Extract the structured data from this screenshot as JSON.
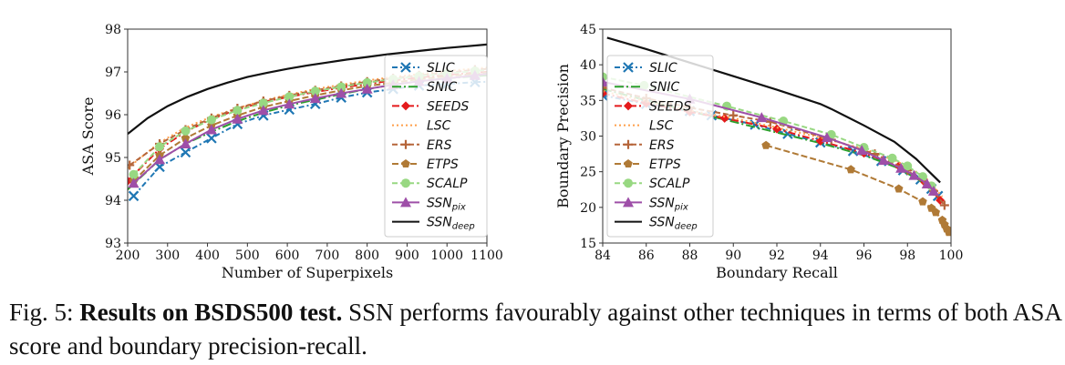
{
  "caption": {
    "label": "Fig. 5:",
    "bold": "Results on BSDS500 test.",
    "text": "SSN performs favourably against other techniques in terms of both ASA score and boundary precision-recall."
  },
  "chart_data": [
    {
      "type": "line",
      "title": "",
      "xlabel": "Number of Superpixels",
      "ylabel": "ASA Score",
      "xlim": [
        200,
        1100
      ],
      "ylim": [
        93,
        98
      ],
      "xticks": [
        200,
        300,
        400,
        500,
        600,
        700,
        800,
        900,
        1000,
        1100
      ],
      "yticks": [
        93,
        94,
        95,
        96,
        97,
        98
      ],
      "grid": false,
      "legend_position": "lower-right",
      "series": [
        {
          "name": "SLIC",
          "sub": "",
          "color": "#1f77b4",
          "dash": "6,3,2,3",
          "marker": "x",
          "x": [
            215,
            280,
            345,
            410,
            475,
            540,
            605,
            670,
            735,
            800,
            865,
            930,
            1000,
            1070,
            1100
          ],
          "y": [
            94.1,
            94.78,
            95.12,
            95.45,
            95.78,
            95.98,
            96.12,
            96.25,
            96.4,
            96.52,
            96.6,
            96.68,
            96.72,
            96.76,
            96.77
          ]
        },
        {
          "name": "SNIC",
          "sub": "",
          "color": "#2ca02c",
          "dash": "10,3,2,3",
          "marker": "none",
          "x": [
            200,
            280,
            345,
            410,
            475,
            540,
            605,
            670,
            735,
            800,
            865,
            930,
            1000,
            1070,
            1100
          ],
          "y": [
            94.25,
            94.95,
            95.32,
            95.6,
            95.85,
            96.05,
            96.22,
            96.35,
            96.48,
            96.6,
            96.7,
            96.78,
            96.85,
            96.9,
            96.92
          ]
        },
        {
          "name": "SEEDS",
          "sub": "",
          "color": "#e41a1c",
          "dash": "8,3,2,3",
          "marker": "diamond",
          "x": [
            200,
            280,
            345,
            410,
            475,
            540,
            605,
            670,
            735,
            800,
            865,
            930,
            1000,
            1070,
            1100
          ],
          "y": [
            94.45,
            95.2,
            95.6,
            95.9,
            96.12,
            96.3,
            96.42,
            96.53,
            96.63,
            96.72,
            96.8,
            96.87,
            96.93,
            96.98,
            97.0
          ]
        },
        {
          "name": "LSC",
          "sub": "",
          "color": "#ff9f4a",
          "dash": "2,3",
          "marker": "none",
          "x": [
            200,
            280,
            345,
            410,
            475,
            540,
            605,
            670,
            735,
            800,
            865,
            930,
            1000,
            1070,
            1100
          ],
          "y": [
            94.75,
            95.35,
            95.7,
            95.95,
            96.15,
            96.33,
            96.47,
            96.6,
            96.7,
            96.8,
            96.88,
            96.95,
            97.02,
            97.08,
            97.1
          ]
        },
        {
          "name": "ERS",
          "sub": "",
          "color": "#b5653a",
          "dash": "6,3",
          "marker": "plus",
          "x": [
            205,
            280,
            345,
            410,
            475,
            540,
            605,
            670,
            735,
            800,
            865,
            930,
            1000,
            1070,
            1100
          ],
          "y": [
            94.82,
            95.32,
            95.65,
            95.92,
            96.15,
            96.32,
            96.45,
            96.57,
            96.67,
            96.77,
            96.85,
            96.92,
            96.98,
            97.05,
            97.07
          ]
        },
        {
          "name": "ETPS",
          "sub": "",
          "color": "#b07a36",
          "dash": "7,3",
          "marker": "pentagon",
          "x": [
            215,
            280,
            345,
            410,
            475,
            540,
            605,
            670,
            735,
            800,
            865,
            930,
            1000,
            1070,
            1100
          ],
          "y": [
            94.45,
            95.05,
            95.45,
            95.75,
            95.98,
            96.18,
            96.32,
            96.45,
            96.57,
            96.67,
            96.75,
            96.83,
            96.9,
            96.96,
            96.98
          ]
        },
        {
          "name": "SCALP",
          "sub": "",
          "color": "#98d882",
          "dash": "6,3",
          "marker": "circle",
          "x": [
            215,
            280,
            345,
            410,
            475,
            540,
            605,
            670,
            735,
            800,
            865,
            930,
            1000,
            1070,
            1100
          ],
          "y": [
            94.6,
            95.25,
            95.62,
            95.88,
            96.1,
            96.27,
            96.42,
            96.55,
            96.65,
            96.75,
            96.83,
            96.9,
            96.96,
            97.02,
            97.04
          ]
        },
        {
          "name": "SSN",
          "sub": "pix",
          "color": "#9e4fa8",
          "dash": "",
          "marker": "triangle",
          "x": [
            215,
            280,
            345,
            410,
            475,
            540,
            605,
            670,
            735,
            800,
            865,
            930,
            1000,
            1070,
            1100
          ],
          "y": [
            94.4,
            94.95,
            95.32,
            95.65,
            95.9,
            96.1,
            96.25,
            96.38,
            96.5,
            96.6,
            96.7,
            96.78,
            96.85,
            96.92,
            96.95
          ]
        },
        {
          "name": "SSN",
          "sub": "deep",
          "color": "#111111",
          "dash": "",
          "marker": "none",
          "x": [
            200,
            250,
            300,
            350,
            400,
            450,
            500,
            550,
            600,
            650,
            700,
            750,
            800,
            850,
            900,
            950,
            1000,
            1050,
            1100
          ],
          "y": [
            95.55,
            95.92,
            96.2,
            96.42,
            96.6,
            96.75,
            96.88,
            96.98,
            97.07,
            97.15,
            97.22,
            97.29,
            97.35,
            97.41,
            97.46,
            97.51,
            97.56,
            97.6,
            97.64
          ]
        }
      ]
    },
    {
      "type": "line",
      "title": "",
      "xlabel": "Boundary Recall",
      "ylabel": "Boundary Precision",
      "xlim": [
        84,
        100
      ],
      "ylim": [
        15,
        45
      ],
      "xticks": [
        84,
        86,
        88,
        90,
        92,
        94,
        96,
        98,
        100
      ],
      "yticks": [
        15,
        20,
        25,
        30,
        35,
        40,
        45
      ],
      "grid": false,
      "legend_position": "lower-left",
      "series": [
        {
          "name": "SLIC",
          "sub": "",
          "color": "#1f77b4",
          "dash": "6,3,2,3",
          "marker": "x",
          "x": [
            84,
            86,
            88,
            89.0,
            91.0,
            92.5,
            94.0,
            95.5,
            96.8,
            97.8,
            98.6,
            99.1,
            99.4
          ],
          "y": [
            35.7,
            34.5,
            33.5,
            32.9,
            31.6,
            30.3,
            29.1,
            27.9,
            26.5,
            25.2,
            23.9,
            22.6,
            21.6
          ]
        },
        {
          "name": "SNIC",
          "sub": "",
          "color": "#2ca02c",
          "dash": "10,3,2,3",
          "marker": "none",
          "x": [
            84,
            86,
            88,
            90,
            92,
            94,
            96,
            97.5,
            98.5,
            99.2
          ],
          "y": [
            36.6,
            35.0,
            33.5,
            32.0,
            30.5,
            29.0,
            27.3,
            25.6,
            23.9,
            22.3
          ]
        },
        {
          "name": "SEEDS",
          "sub": "",
          "color": "#e41a1c",
          "dash": "8,3,2,3",
          "marker": "diamond",
          "x": [
            84,
            86,
            88,
            89.6,
            92,
            94.0,
            96,
            97.6,
            98.8,
            99.5
          ],
          "y": [
            36.0,
            34.6,
            33.4,
            32.5,
            31.0,
            29.3,
            27.6,
            25.8,
            23.5,
            21.0
          ]
        },
        {
          "name": "LSC",
          "sub": "",
          "color": "#ff9f4a",
          "dash": "2,3",
          "marker": "none",
          "x": [
            84,
            86,
            88,
            90,
            92,
            94,
            96,
            97.5,
            98.8,
            99.6
          ],
          "y": [
            36.3,
            34.9,
            33.6,
            32.5,
            31.2,
            29.8,
            28.2,
            26.5,
            24.3,
            21.5
          ]
        },
        {
          "name": "ERS",
          "sub": "",
          "color": "#b5653a",
          "dash": "6,3",
          "marker": "plus",
          "x": [
            84,
            86,
            88,
            90,
            91.7,
            94.5,
            96.5,
            98.0,
            99.2,
            99.7
          ],
          "y": [
            36.8,
            35.3,
            34.0,
            32.9,
            32.0,
            29.5,
            27.5,
            25.2,
            22.3,
            20.3
          ]
        },
        {
          "name": "ETPS",
          "sub": "",
          "color": "#b07a36",
          "dash": "7,3",
          "marker": "pentagon",
          "x": [
            91.5,
            95.4,
            97.6,
            98.7,
            99.1,
            99.3,
            99.6,
            99.7,
            99.8,
            99.9
          ],
          "y": [
            28.7,
            25.3,
            22.6,
            20.8,
            19.9,
            19.3,
            18.2,
            17.6,
            17.0,
            16.5
          ]
        },
        {
          "name": "SCALP",
          "sub": "",
          "color": "#98d882",
          "dash": "6,3",
          "marker": "circle",
          "x": [
            84,
            85.9,
            89.7,
            92.3,
            94.5,
            96.0,
            97.3,
            98.0,
            98.7,
            99.1
          ],
          "y": [
            38.3,
            37.1,
            34.2,
            32.1,
            30.2,
            28.4,
            26.9,
            25.8,
            24.3,
            23.0
          ]
        },
        {
          "name": "SSN",
          "sub": "pix",
          "color": "#9e4fa8",
          "dash": "",
          "marker": "triangle",
          "x": [
            84,
            88,
            91.3,
            94.3,
            95.9,
            96.9,
            97.7,
            98.3,
            98.9,
            99.2
          ],
          "y": [
            37.6,
            35.2,
            32.6,
            29.8,
            28.0,
            26.6,
            25.5,
            24.5,
            23.3,
            22.3
          ]
        },
        {
          "name": "SSN",
          "sub": "deep",
          "color": "#111111",
          "dash": "",
          "marker": "none",
          "x": [
            84.2,
            86,
            88,
            90,
            92,
            94,
            94.5,
            96,
            97.4,
            98.4,
            99.0,
            99.5
          ],
          "y": [
            43.8,
            42.2,
            40.3,
            38.4,
            36.5,
            34.5,
            33.8,
            31.5,
            29.2,
            26.8,
            25.0,
            23.5
          ]
        }
      ]
    }
  ]
}
